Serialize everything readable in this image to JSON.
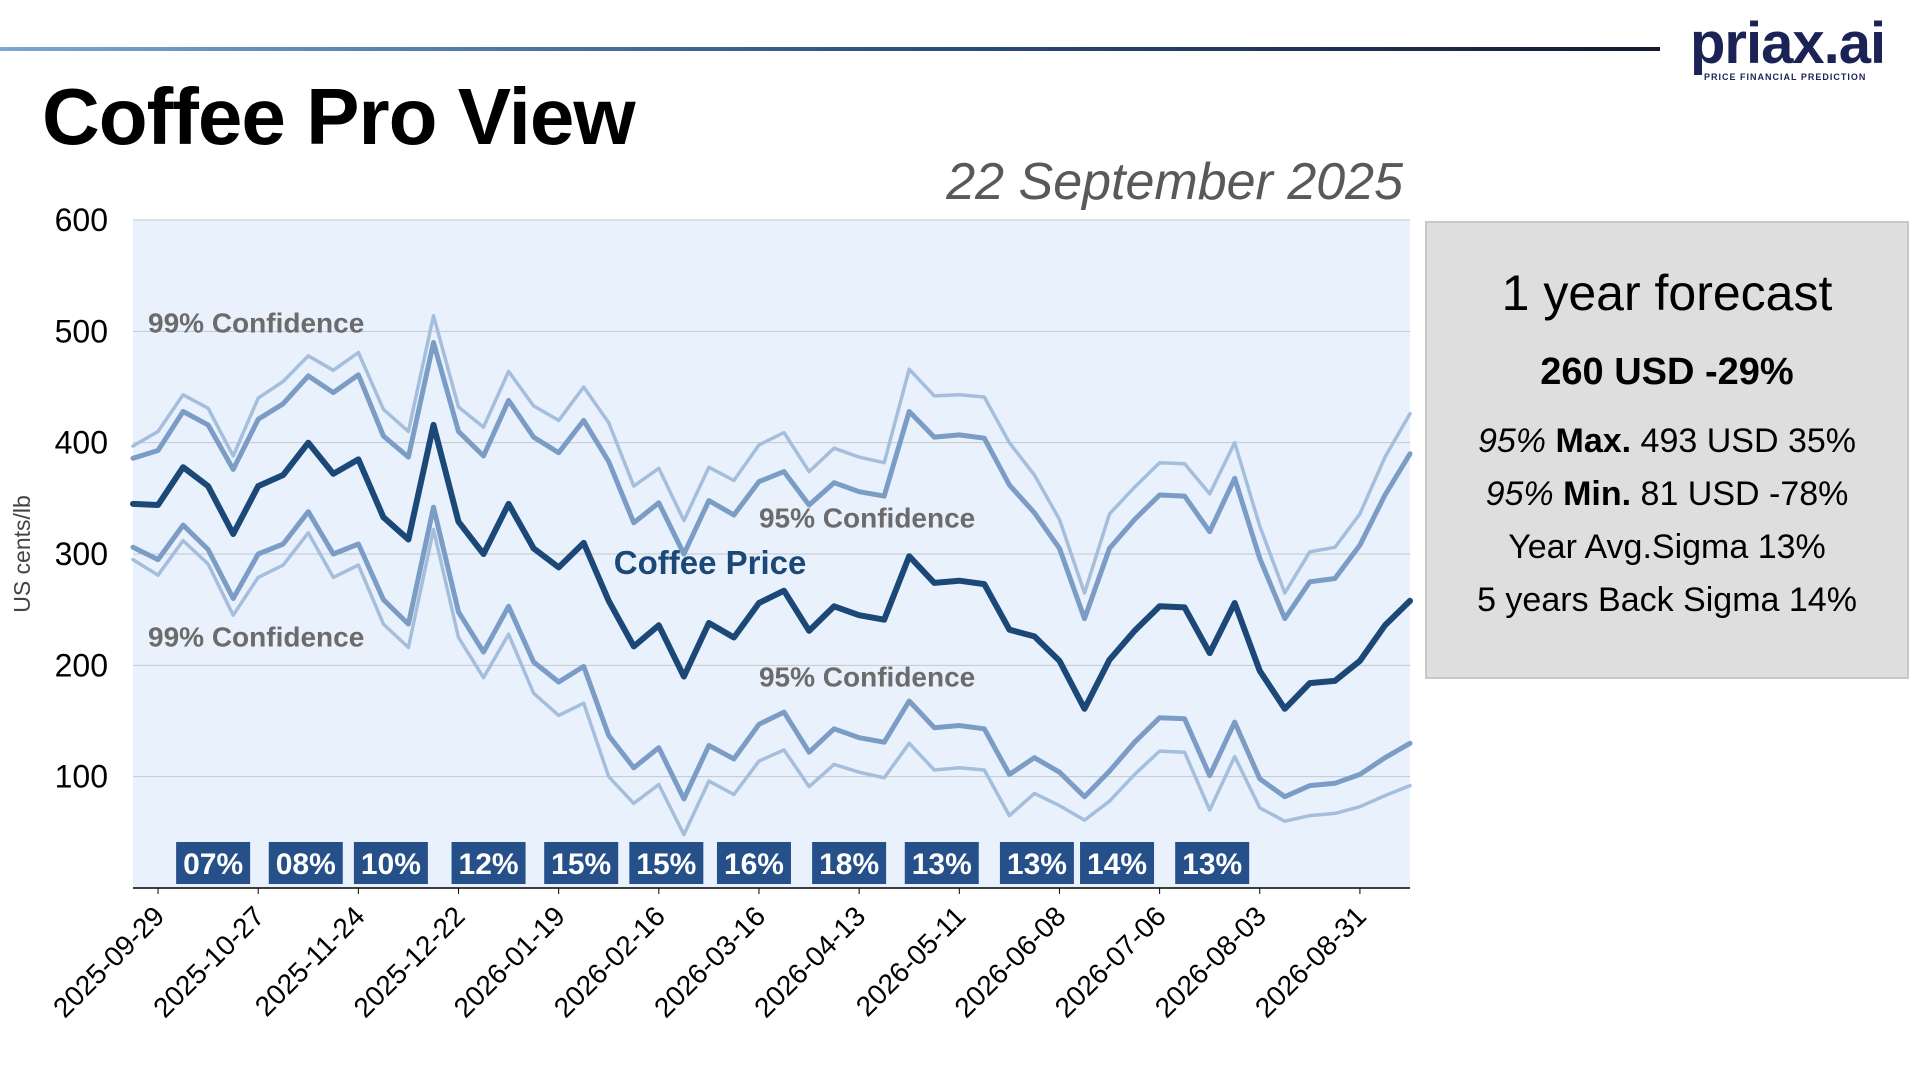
{
  "header": {
    "title": "Coffee Pro View",
    "date": "22 September 2025",
    "logo_text": "priax.ai",
    "logo_tagline": "PRICE FINANCIAL PREDICTION"
  },
  "colors": {
    "plot_bg": "#e9f1fc",
    "price_line": "#1c4878",
    "conf95_line": "#7b9cc5",
    "conf99_line": "#a5bedc",
    "sigma_badge_bg": "#26508a",
    "annotation_text": "#6b6b6b"
  },
  "chart_data": {
    "type": "line",
    "ylabel": "US cents/lb",
    "ylim": [
      0,
      600
    ],
    "y_ticks": [
      100,
      200,
      300,
      400,
      500,
      600
    ],
    "grid": true,
    "x_start": "2025-09-22",
    "x_end": "2026-09-14",
    "x_tick_labels": [
      "2025-09-29",
      "2025-10-27",
      "2025-11-24",
      "2025-12-22",
      "2026-01-19",
      "2026-02-16",
      "2026-03-16",
      "2026-04-13",
      "2026-05-11",
      "2026-06-08",
      "2026-07-06",
      "2026-08-03",
      "2026-08-31"
    ],
    "series": [
      {
        "name": "Coffee Price",
        "role": "price",
        "values": [
          345,
          344,
          378,
          361,
          318,
          361,
          371,
          400,
          372,
          385,
          333,
          313,
          416,
          329,
          300,
          345,
          305,
          288,
          310,
          258,
          217,
          236,
          190,
          238,
          225,
          256,
          267,
          231,
          253,
          245,
          241,
          298,
          274,
          276,
          273,
          232,
          226,
          204,
          161,
          205,
          231,
          253,
          252,
          211,
          256,
          195,
          161,
          184,
          186,
          204,
          236,
          258
        ]
      },
      {
        "role": "upper95",
        "values": [
          386,
          393,
          428,
          416,
          376,
          421,
          435,
          460,
          445,
          461,
          406,
          387,
          490,
          410,
          388,
          438,
          405,
          391,
          420,
          383,
          328,
          346,
          300,
          348,
          335,
          365,
          374,
          344,
          364,
          356,
          352,
          428,
          405,
          407,
          404,
          362,
          337,
          305,
          242,
          305,
          331,
          353,
          352,
          320,
          368,
          296,
          242,
          275,
          278,
          308,
          353,
          390
        ]
      },
      {
        "role": "lower95",
        "values": [
          306,
          295,
          326,
          304,
          260,
          300,
          309,
          338,
          300,
          309,
          259,
          237,
          342,
          248,
          212,
          253,
          203,
          185,
          199,
          137,
          108,
          126,
          80,
          128,
          116,
          147,
          158,
          122,
          143,
          135,
          131,
          168,
          144,
          146,
          143,
          102,
          117,
          104,
          82,
          105,
          131,
          153,
          152,
          101,
          149,
          98,
          82,
          92,
          94,
          102,
          117,
          130
        ]
      },
      {
        "role": "upper99",
        "values": [
          397,
          410,
          443,
          431,
          388,
          440,
          455,
          478,
          465,
          481,
          430,
          410,
          514,
          432,
          414,
          464,
          433,
          420,
          450,
          418,
          361,
          377,
          330,
          378,
          366,
          398,
          409,
          374,
          395,
          387,
          382,
          466,
          442,
          443,
          441,
          400,
          371,
          331,
          265,
          336,
          360,
          382,
          381,
          354,
          400,
          325,
          265,
          302,
          306,
          336,
          387,
          426
        ]
      },
      {
        "role": "lower99",
        "values": [
          295,
          281,
          312,
          291,
          245,
          279,
          290,
          319,
          279,
          290,
          237,
          216,
          322,
          225,
          189,
          228,
          175,
          155,
          166,
          100,
          76,
          93,
          48,
          96,
          84,
          114,
          124,
          91,
          111,
          104,
          99,
          130,
          106,
          108,
          106,
          65,
          85,
          74,
          61,
          78,
          102,
          123,
          122,
          70,
          118,
          72,
          60,
          65,
          67,
          73,
          83,
          92
        ]
      }
    ],
    "annotations": [
      {
        "text": "99% Confidence",
        "week": 0.6,
        "y": 499
      },
      {
        "text": "99% Confidence",
        "week": 0.6,
        "y": 217
      },
      {
        "text": "95% Confidence",
        "week": 25,
        "y": 324
      },
      {
        "text": "95% Confidence",
        "week": 25,
        "y": 181
      },
      {
        "text": "Coffee Price",
        "week": 19.2,
        "y": 282
      }
    ],
    "sigma_badges": [
      {
        "label": "07%",
        "week": 3.2
      },
      {
        "label": "08%",
        "week": 6.9
      },
      {
        "label": "10%",
        "week": 10.3
      },
      {
        "label": "12%",
        "week": 14.2
      },
      {
        "label": "15%",
        "week": 17.9
      },
      {
        "label": "15%",
        "week": 21.3
      },
      {
        "label": "16%",
        "week": 24.8
      },
      {
        "label": "18%",
        "week": 28.6
      },
      {
        "label": "13%",
        "week": 32.3
      },
      {
        "label": "13%",
        "week": 36.1
      },
      {
        "label": "14%",
        "week": 39.3
      },
      {
        "label": "13%",
        "week": 43.1
      }
    ]
  },
  "forecast_panel": {
    "title": "1 year forecast",
    "headline": "260 USD -29%",
    "max_prefix": "95%",
    "max_label": "Max.",
    "max_value": "493 USD 35%",
    "min_prefix": "95%",
    "min_label": "Min.",
    "min_value": "81 USD -78%",
    "year_avg": "Year Avg.Sigma 13%",
    "five_year": "5 years Back Sigma 14%"
  }
}
